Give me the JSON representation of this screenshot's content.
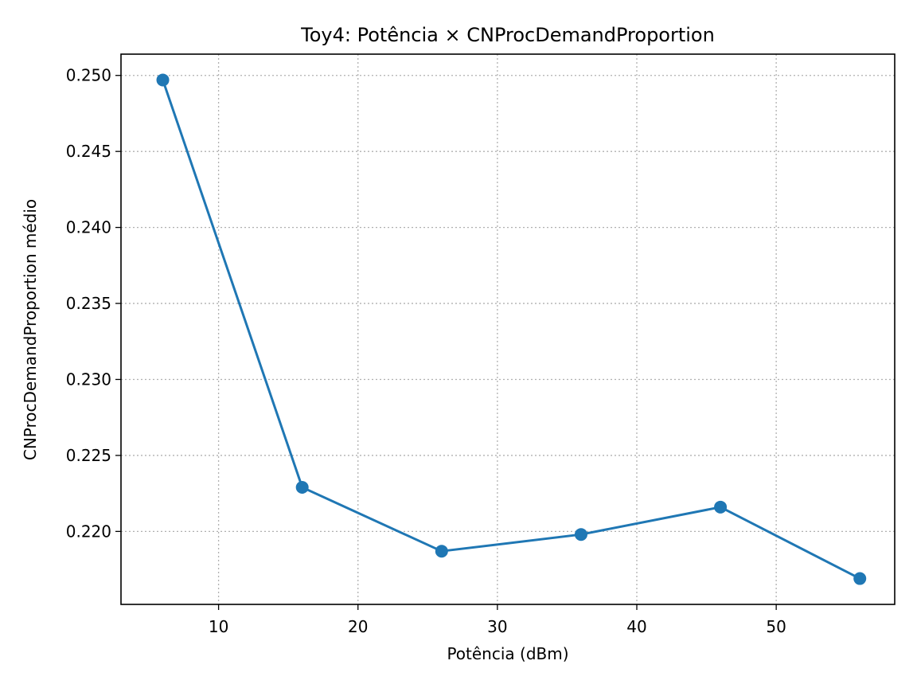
{
  "chart_data": {
    "type": "line",
    "title": "Toy4: Potência × CNProcDemandProportion",
    "xlabel": "Potência (dBm)",
    "ylabel": "CNProcDemandProportion médio",
    "xlim": [
      3,
      58.5
    ],
    "ylim": [
      0.2152,
      0.2514
    ],
    "xticks": [
      10,
      20,
      30,
      40,
      50
    ],
    "yticks": [
      0.22,
      0.225,
      0.23,
      0.235,
      0.24,
      0.245,
      0.25
    ],
    "grid": true,
    "grid_style": "dotted",
    "series": [
      {
        "x": [
          6,
          16,
          26,
          36,
          46,
          56
        ],
        "y": [
          0.2497,
          0.2229,
          0.2187,
          0.2198,
          0.2216,
          0.2169
        ],
        "color": "#1f77b4",
        "marker": "circle"
      }
    ]
  },
  "colors": {
    "series": "#1f77b4",
    "grid": "#b0b0b0",
    "axes": "#000000"
  }
}
